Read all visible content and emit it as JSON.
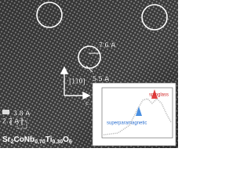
{
  "annotations": {
    "distance_top": "7.6 Å",
    "distance_mid": "5.5 Å",
    "direction": "[110]",
    "distance_left_top": "3.8 Å",
    "distance_left_bottom": "2.7 Å",
    "axis_c": "c"
  },
  "formula": {
    "parts": [
      "Sr",
      "2",
      "CoNb",
      "0.70",
      "Ti",
      "0.30",
      "O",
      "6"
    ]
  },
  "inset": {
    "label_left": "superparamagnetic",
    "label_right": "spinglass"
  }
}
